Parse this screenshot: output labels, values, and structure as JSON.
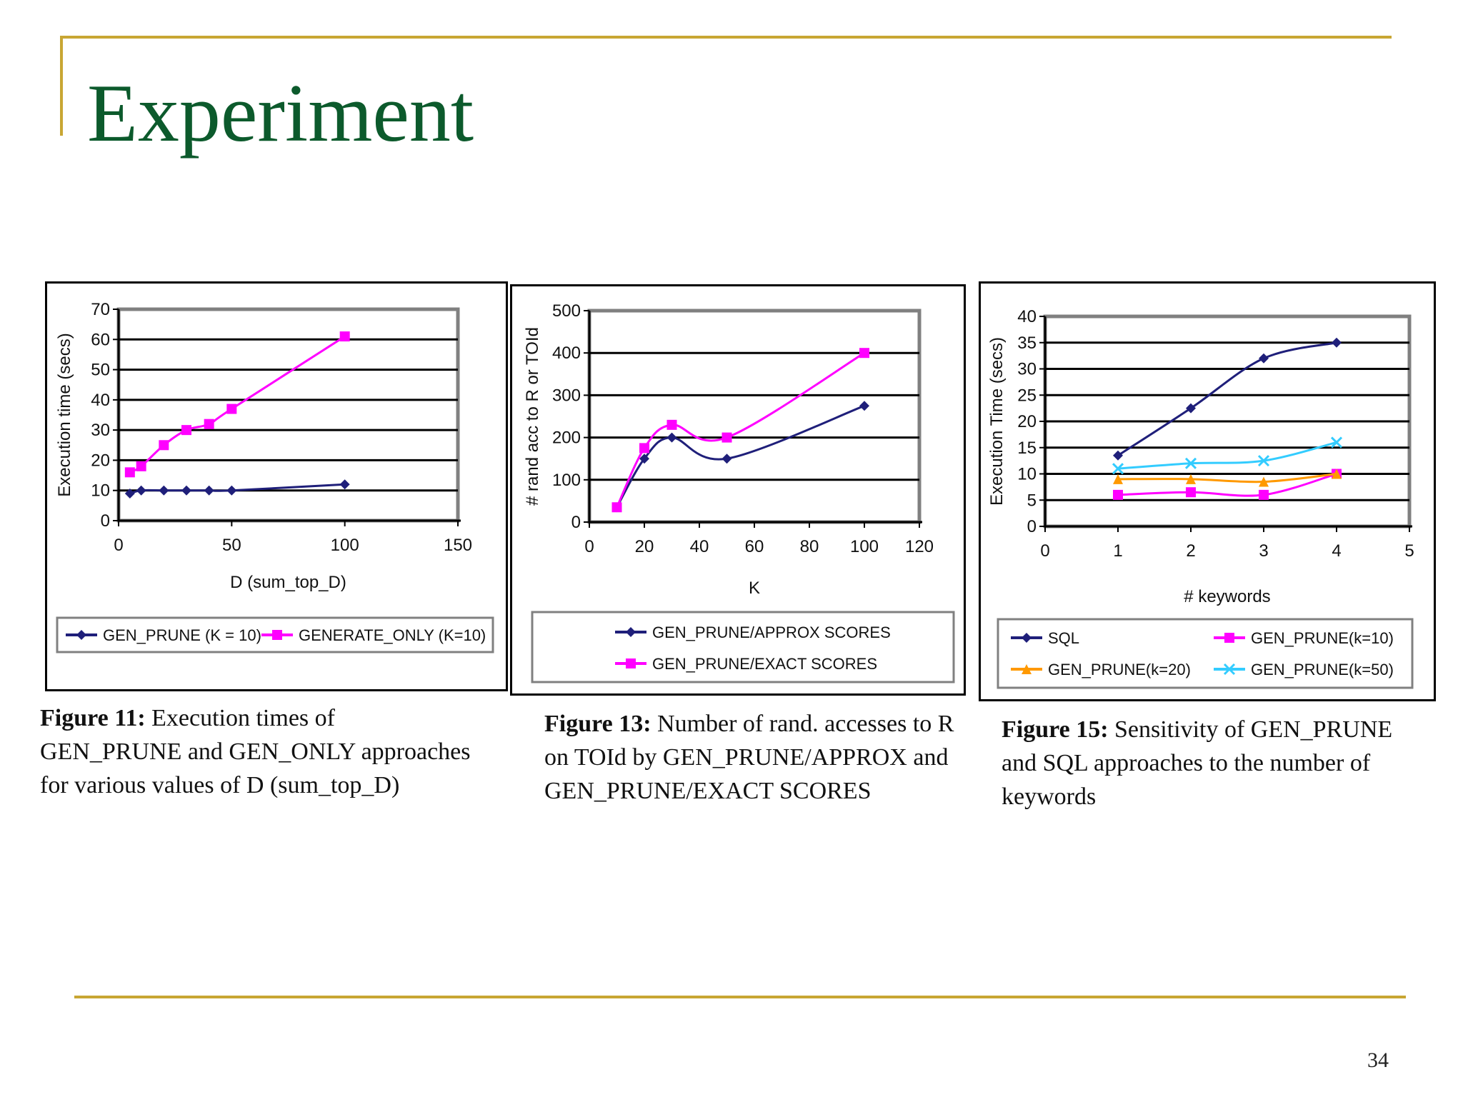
{
  "slide": {
    "title": "Experiment",
    "page_number": "34",
    "colors": {
      "title": "#0C5A2C",
      "rule": "#C8A633"
    }
  },
  "figures": [
    {
      "caption_bold": "Figure 11:",
      "caption_lines": [
        " Execution times of",
        "GEN_PRUNE and GEN_ONLY approaches",
        "for various values of D (sum_top_D)"
      ]
    },
    {
      "caption_bold": "Figure 13:",
      "caption_lines": [
        " Number of rand. accesses to R",
        "on TOId by GEN_PRUNE/APPROX and",
        "GEN_PRUNE/EXACT SCORES"
      ]
    },
    {
      "caption_bold": "Figure 15:",
      "caption_lines": [
        " Sensitivity of GEN_PRUNE",
        "and SQL approaches to the number of",
        "keywords"
      ]
    }
  ],
  "chart_data": [
    {
      "type": "line",
      "title": "",
      "xlabel": "D (sum_top_D)",
      "ylabel": "Execution time (secs)",
      "xlim": [
        0,
        150
      ],
      "ylim": [
        0,
        70
      ],
      "xticks": [
        0,
        50,
        100,
        150
      ],
      "yticks": [
        0,
        10,
        20,
        30,
        40,
        50,
        60,
        70
      ],
      "ytick_labels": [
        "0",
        "10",
        "20",
        "30",
        "40",
        "50",
        "60",
        "70"
      ],
      "grid": "horizontal",
      "legend_position": "bottom",
      "series": [
        {
          "name": "GEN_PRUNE (K = 10)",
          "color": "#1F1F7A",
          "marker": "diamond",
          "x": [
            5,
            10,
            20,
            30,
            40,
            50,
            100
          ],
          "y": [
            9,
            10,
            10,
            10,
            10,
            10,
            12
          ]
        },
        {
          "name": "GENERATE_ONLY (K=10)",
          "color": "#FF00FF",
          "marker": "square",
          "x": [
            5,
            10,
            20,
            30,
            40,
            50,
            100
          ],
          "y": [
            16,
            18,
            25,
            30,
            32,
            37,
            61
          ]
        }
      ]
    },
    {
      "type": "line",
      "title": "",
      "xlabel": "K",
      "ylabel": "# rand acc to R or TOId",
      "xlim": [
        0,
        120
      ],
      "ylim": [
        0,
        500
      ],
      "xticks": [
        0,
        20,
        40,
        60,
        80,
        100,
        120
      ],
      "yticks": [
        0,
        100,
        200,
        300,
        400,
        500
      ],
      "ytick_labels": [
        "0",
        "100",
        "200",
        "300",
        "400",
        "500"
      ],
      "grid": "horizontal",
      "legend_position": "bottom",
      "series": [
        {
          "name": "GEN_PRUNE/APPROX SCORES",
          "color": "#1F1F7A",
          "marker": "diamond",
          "x": [
            10,
            20,
            30,
            50,
            100
          ],
          "y": [
            35,
            150,
            200,
            150,
            275
          ]
        },
        {
          "name": "GEN_PRUNE/EXACT SCORES",
          "color": "#FF00FF",
          "marker": "square",
          "x": [
            10,
            20,
            30,
            50,
            100
          ],
          "y": [
            35,
            175,
            230,
            200,
            400
          ]
        }
      ]
    },
    {
      "type": "line",
      "title": "",
      "xlabel": "# keywords",
      "ylabel": "Execution Time (secs)",
      "xlim": [
        0,
        5
      ],
      "ylim": [
        0,
        40
      ],
      "xticks": [
        0,
        1,
        2,
        3,
        4,
        5
      ],
      "yticks": [
        0,
        5,
        10,
        15,
        20,
        25,
        30,
        35,
        40
      ],
      "ytick_labels": [
        "0",
        "5",
        "10",
        "15",
        "20",
        "25",
        "30",
        "35",
        "40"
      ],
      "grid": "horizontal",
      "legend_position": "bottom",
      "series": [
        {
          "name": "SQL",
          "color": "#1F1F7A",
          "marker": "diamond",
          "x": [
            1,
            2,
            3,
            4
          ],
          "y": [
            13.5,
            22.5,
            32,
            35
          ]
        },
        {
          "name": "GEN_PRUNE(k=10)",
          "color": "#FF00FF",
          "marker": "square",
          "x": [
            1,
            2,
            3,
            4
          ],
          "y": [
            6,
            6.5,
            6,
            10
          ]
        },
        {
          "name": "GEN_PRUNE(k=20)",
          "color": "#FF9900",
          "marker": "triangle",
          "x": [
            1,
            2,
            3,
            4
          ],
          "y": [
            9,
            9,
            8.5,
            10
          ]
        },
        {
          "name": "GEN_PRUNE(k=50)",
          "color": "#33CCFF",
          "marker": "x",
          "x": [
            1,
            2,
            3,
            4
          ],
          "y": [
            11,
            12,
            12.5,
            16
          ]
        }
      ]
    }
  ]
}
